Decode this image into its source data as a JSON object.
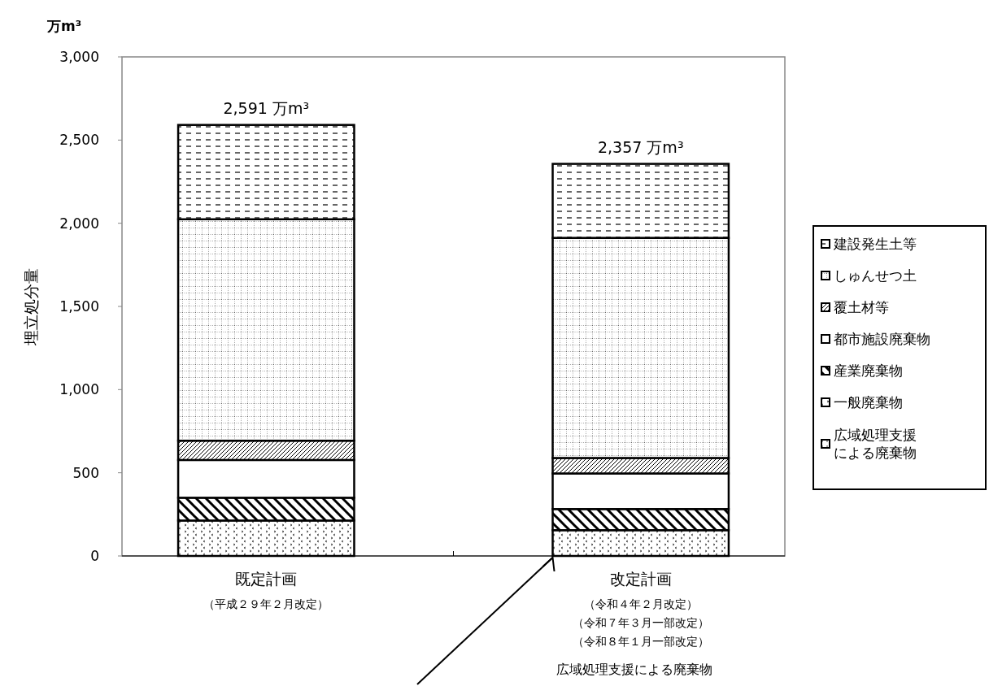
{
  "chart_data": {
    "type": "bar",
    "stacked": true,
    "ylabel": "埋立処分量",
    "categories": [
      "既定計画",
      "改定計画"
    ],
    "series": [
      {
        "name": "広域処理支援による廃棄物",
        "color": "#000000",
        "values": [
          null,
          null
        ]
      },
      {
        "name": "一般廃棄物",
        "color": "#000000",
        "values": [
          213,
          155
        ]
      },
      {
        "name": "産業廃棄物",
        "color": "#000000",
        "values": [
          137,
          127
        ]
      },
      {
        "name": "都市施設廃棄物",
        "color": "#000000",
        "values": [
          227,
          214
        ]
      },
      {
        "name": "覆土材等",
        "color": "#000000",
        "values": [
          116,
          93
        ]
      },
      {
        "name": "しゅんせつ土",
        "color": "#000000",
        "values": [
          1331,
          1323
        ]
      },
      {
        "name": "建設発生土等",
        "color": "#000000",
        "values": [
          567,
          445
        ]
      }
    ],
    "totals": [
      "2,591 万m³",
      "2,357 万m³"
    ],
    "ylim": [
      0,
      3000
    ],
    "yticks": [
      0,
      {
        "value": 500,
        "label": "500"
      },
      {
        "value": 1000,
        "label": "1,000"
      },
      {
        "value": 1500,
        "label": "1,500"
      },
      {
        "value": 2000,
        "label": "2,000"
      },
      {
        "value": 2500,
        "label": "2,500"
      },
      {
        "value": 3000,
        "label": "3,000"
      }
    ],
    "grid": false,
    "legend": "right",
    "annotations": [
      "万m³",
      "（平成２９年２月改定）",
      "（令和４年２月改定）",
      "（令和７年３月一部改定）",
      "（令和８年１月一部改定）",
      "広域処理支援による廃棄物"
    ]
  }
}
